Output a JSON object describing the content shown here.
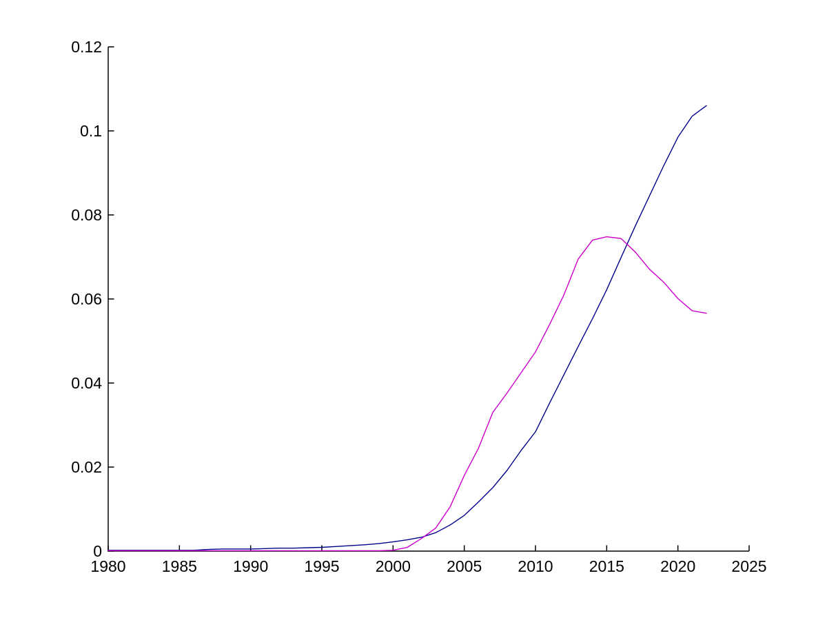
{
  "chart_data": {
    "type": "line",
    "title": "",
    "xlabel": "",
    "ylabel": "",
    "xlim": [
      1980,
      2025
    ],
    "ylim": [
      0,
      0.12
    ],
    "grid": false,
    "legend": "none",
    "background_color": "#ffffff",
    "axis_color": "#000000",
    "x_ticks": [
      1980,
      1985,
      1990,
      1995,
      2000,
      2005,
      2010,
      2015,
      2020,
      2025
    ],
    "x_tick_labels": [
      "1980",
      "1985",
      "1990",
      "1995",
      "2000",
      "2005",
      "2010",
      "2015",
      "2020",
      "2025"
    ],
    "y_ticks": [
      0,
      0.02,
      0.04,
      0.06,
      0.08,
      0.1,
      0.12
    ],
    "y_tick_labels": [
      "0",
      "0.02",
      "0.04",
      "0.06",
      "0.08",
      "0.1",
      "0.12"
    ],
    "x": [
      1980,
      1981,
      1982,
      1983,
      1984,
      1985,
      1986,
      1987,
      1988,
      1989,
      1990,
      1991,
      1992,
      1993,
      1994,
      1995,
      1996,
      1997,
      1998,
      1999,
      2000,
      2001,
      2002,
      2003,
      2004,
      2005,
      2006,
      2007,
      2008,
      2009,
      2010,
      2011,
      2012,
      2013,
      2014,
      2015,
      2016,
      2017,
      2018,
      2019,
      2020,
      2021,
      2022
    ],
    "series": [
      {
        "name": "dark-blue-line",
        "color": "#00008B",
        "values": [
          0.0002,
          0.0002,
          0.0002,
          0.0002,
          0.0002,
          0.0002,
          0.0002,
          0.0004,
          0.0005,
          0.0005,
          0.0005,
          0.0006,
          0.0007,
          0.0007,
          0.0008,
          0.0009,
          0.0011,
          0.0013,
          0.0015,
          0.0018,
          0.0022,
          0.0027,
          0.0033,
          0.0044,
          0.0062,
          0.0085,
          0.0117,
          0.0151,
          0.0192,
          0.024,
          0.0284,
          0.0353,
          0.042,
          0.0487,
          0.0553,
          0.0622,
          0.0698,
          0.0773,
          0.0845,
          0.0917,
          0.0985,
          0.1035,
          0.106
        ]
      },
      {
        "name": "magenta-line",
        "color": "#CC00CC",
        "values": [
          0.0001,
          0.0001,
          0.0001,
          0.0001,
          0.0001,
          0.0001,
          0.0001,
          0.0001,
          0.0001,
          0.0001,
          0.0001,
          0.0001,
          0.0001,
          0.0001,
          0.0001,
          0.0001,
          0.0001,
          0.0001,
          0.0001,
          0.0001,
          0.0002,
          0.0009,
          0.003,
          0.0055,
          0.0105,
          0.018,
          0.0245,
          0.033,
          0.0376,
          0.0425,
          0.0474,
          0.054,
          0.061,
          0.0695,
          0.074,
          0.0748,
          0.0744,
          0.0712,
          0.0671,
          0.064,
          0.0601,
          0.0572,
          0.0566
        ]
      }
    ]
  }
}
